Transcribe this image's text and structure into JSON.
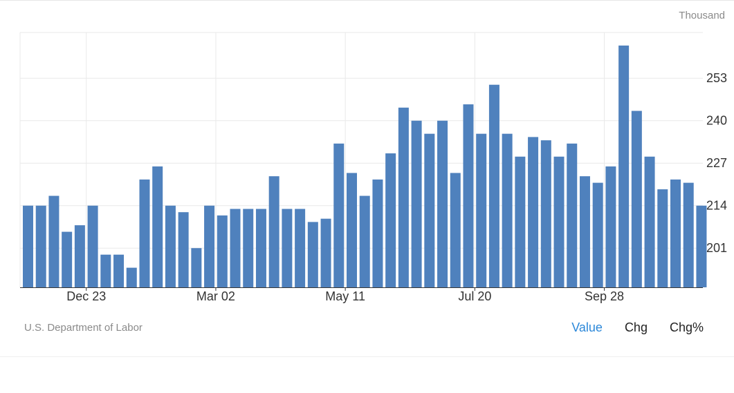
{
  "unit_label": "Thousand",
  "source": "U.S. Department of Labor",
  "tabs": [
    {
      "label": "Value",
      "active": true
    },
    {
      "label": "Chg",
      "active": false
    },
    {
      "label": "Chg%",
      "active": false
    }
  ],
  "colors": {
    "bar": "#4f81bd",
    "grid": "#e9e9e9",
    "axis": "#333333",
    "active_tab": "#2c88d9"
  },
  "chart_data": {
    "type": "bar",
    "xlabel": "",
    "ylabel": "",
    "ylim": [
      189,
      267
    ],
    "yticks": [
      201,
      214,
      227,
      240,
      253
    ],
    "x_tick_labels": [
      {
        "index": 5,
        "label": "Dec 23"
      },
      {
        "index": 15,
        "label": "Mar 02"
      },
      {
        "index": 25,
        "label": "May 11"
      },
      {
        "index": 35,
        "label": "Jul 20"
      },
      {
        "index": 45,
        "label": "Sep 28"
      }
    ],
    "values": [
      214,
      214,
      217,
      206,
      208,
      214,
      199,
      199,
      195,
      222,
      226,
      214,
      212,
      201,
      214,
      211,
      213,
      213,
      213,
      223,
      213,
      213,
      209,
      210,
      233,
      224,
      217,
      222,
      230,
      244,
      240,
      236,
      240,
      224,
      245,
      236,
      251,
      236,
      229,
      235,
      234,
      229,
      233,
      223,
      221,
      226,
      263,
      243,
      229,
      219,
      222,
      221,
      214
    ]
  }
}
